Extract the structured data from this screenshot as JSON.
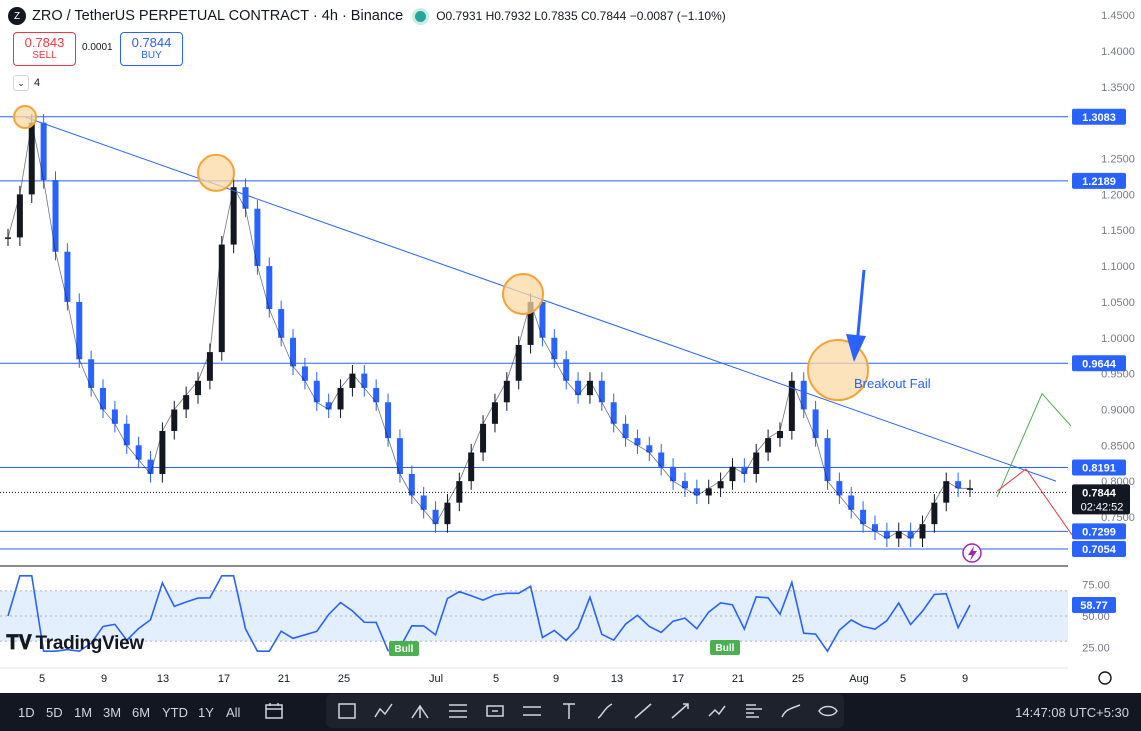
{
  "header": {
    "symbol": "ZRO / TetherUS PERPETUAL CONTRACT · 4h · Binance",
    "logo_text": "Z",
    "ohlc": "O0.7931 H0.7932 L0.7835 C0.7844 −0.0087 (−1.10%)",
    "status_color": "#26a69a"
  },
  "trade": {
    "sell_price": "0.7843",
    "sell_label": "SELL",
    "spread": "0.0001",
    "buy_price": "0.7844",
    "buy_label": "BUY"
  },
  "indicators_count": "4",
  "price_axis": {
    "ticks": [
      "1.4500",
      "1.4000",
      "1.3500",
      "1.2500",
      "1.2000",
      "1.1500",
      "1.1000",
      "1.0500",
      "1.0000",
      "0.9500",
      "0.9000",
      "0.8500",
      "0.8000",
      "0.7500"
    ],
    "min": 0.69,
    "max": 1.46
  },
  "price_levels": [
    {
      "value": 1.3083,
      "label": "1.3083"
    },
    {
      "value": 1.2189,
      "label": "1.2189"
    },
    {
      "value": 0.9644,
      "label": "0.9644"
    },
    {
      "value": 0.8191,
      "label": "0.8191"
    },
    {
      "value": 0.7299,
      "label": "0.7299"
    },
    {
      "value": 0.7054,
      "label": "0.7054"
    }
  ],
  "last_price": {
    "value": 0.7844,
    "label": "0.7844",
    "countdown": "02:42:52"
  },
  "rsi": {
    "value_label": "58.77",
    "value": 58.77,
    "ticks": [
      "75.00",
      "50.00",
      "25.00"
    ],
    "band_top": 70,
    "band_bottom": 30,
    "bull_label": "Bull"
  },
  "time_axis": [
    "5",
    "9",
    "13",
    "17",
    "21",
    "25",
    "Jul",
    "5",
    "9",
    "13",
    "17",
    "21",
    "25",
    "Aug",
    "5",
    "9"
  ],
  "annotation": {
    "text": "Breakout Fail"
  },
  "brand": "TradingView",
  "bottom_bar": {
    "ranges": [
      "1D",
      "5D",
      "1M",
      "3M",
      "6M",
      "YTD",
      "1Y",
      "All"
    ],
    "clock": "14:47:08 UTC+5:30"
  },
  "tools": [
    "rectangle-icon",
    "path-icon",
    "pitchfork-icon",
    "fib-retracement-icon",
    "price-label-icon",
    "channel-icon",
    "text-icon",
    "brush-icon",
    "line-icon",
    "arrow-icon",
    "trend-icon",
    "volume-profile-icon",
    "curve-icon",
    "eye-icon"
  ],
  "colors": {
    "up": "#131722",
    "down": "#2962ff",
    "levels": "#2962ff",
    "trend": "#2962ff",
    "circle": "#f7a234",
    "green": "#4caf50",
    "red": "#f23645",
    "rsi": "#2962ff"
  },
  "chart_data": {
    "type": "candlestick",
    "series": [
      {
        "name": "ZRO / TetherUS",
        "values": [
          1.14,
          1.2,
          1.3,
          1.22,
          1.12,
          1.05,
          0.97,
          0.93,
          0.9,
          0.88,
          0.85,
          0.83,
          0.81,
          0.87,
          0.9,
          0.92,
          0.94,
          0.98,
          1.13,
          1.21,
          1.18,
          1.1,
          1.04,
          1.0,
          0.96,
          0.94,
          0.91,
          0.9,
          0.93,
          0.95,
          0.93,
          0.91,
          0.86,
          0.81,
          0.78,
          0.76,
          0.74,
          0.77,
          0.8,
          0.84,
          0.88,
          0.91,
          0.94,
          0.99,
          1.05,
          1.0,
          0.97,
          0.94,
          0.92,
          0.94,
          0.91,
          0.88,
          0.86,
          0.85,
          0.84,
          0.82,
          0.8,
          0.79,
          0.78,
          0.79,
          0.8,
          0.82,
          0.81,
          0.84,
          0.86,
          0.87,
          0.94,
          0.9,
          0.86,
          0.8,
          0.78,
          0.76,
          0.74,
          0.73,
          0.72,
          0.73,
          0.72,
          0.74,
          0.77,
          0.8,
          0.79,
          0.79
        ]
      }
    ]
  }
}
